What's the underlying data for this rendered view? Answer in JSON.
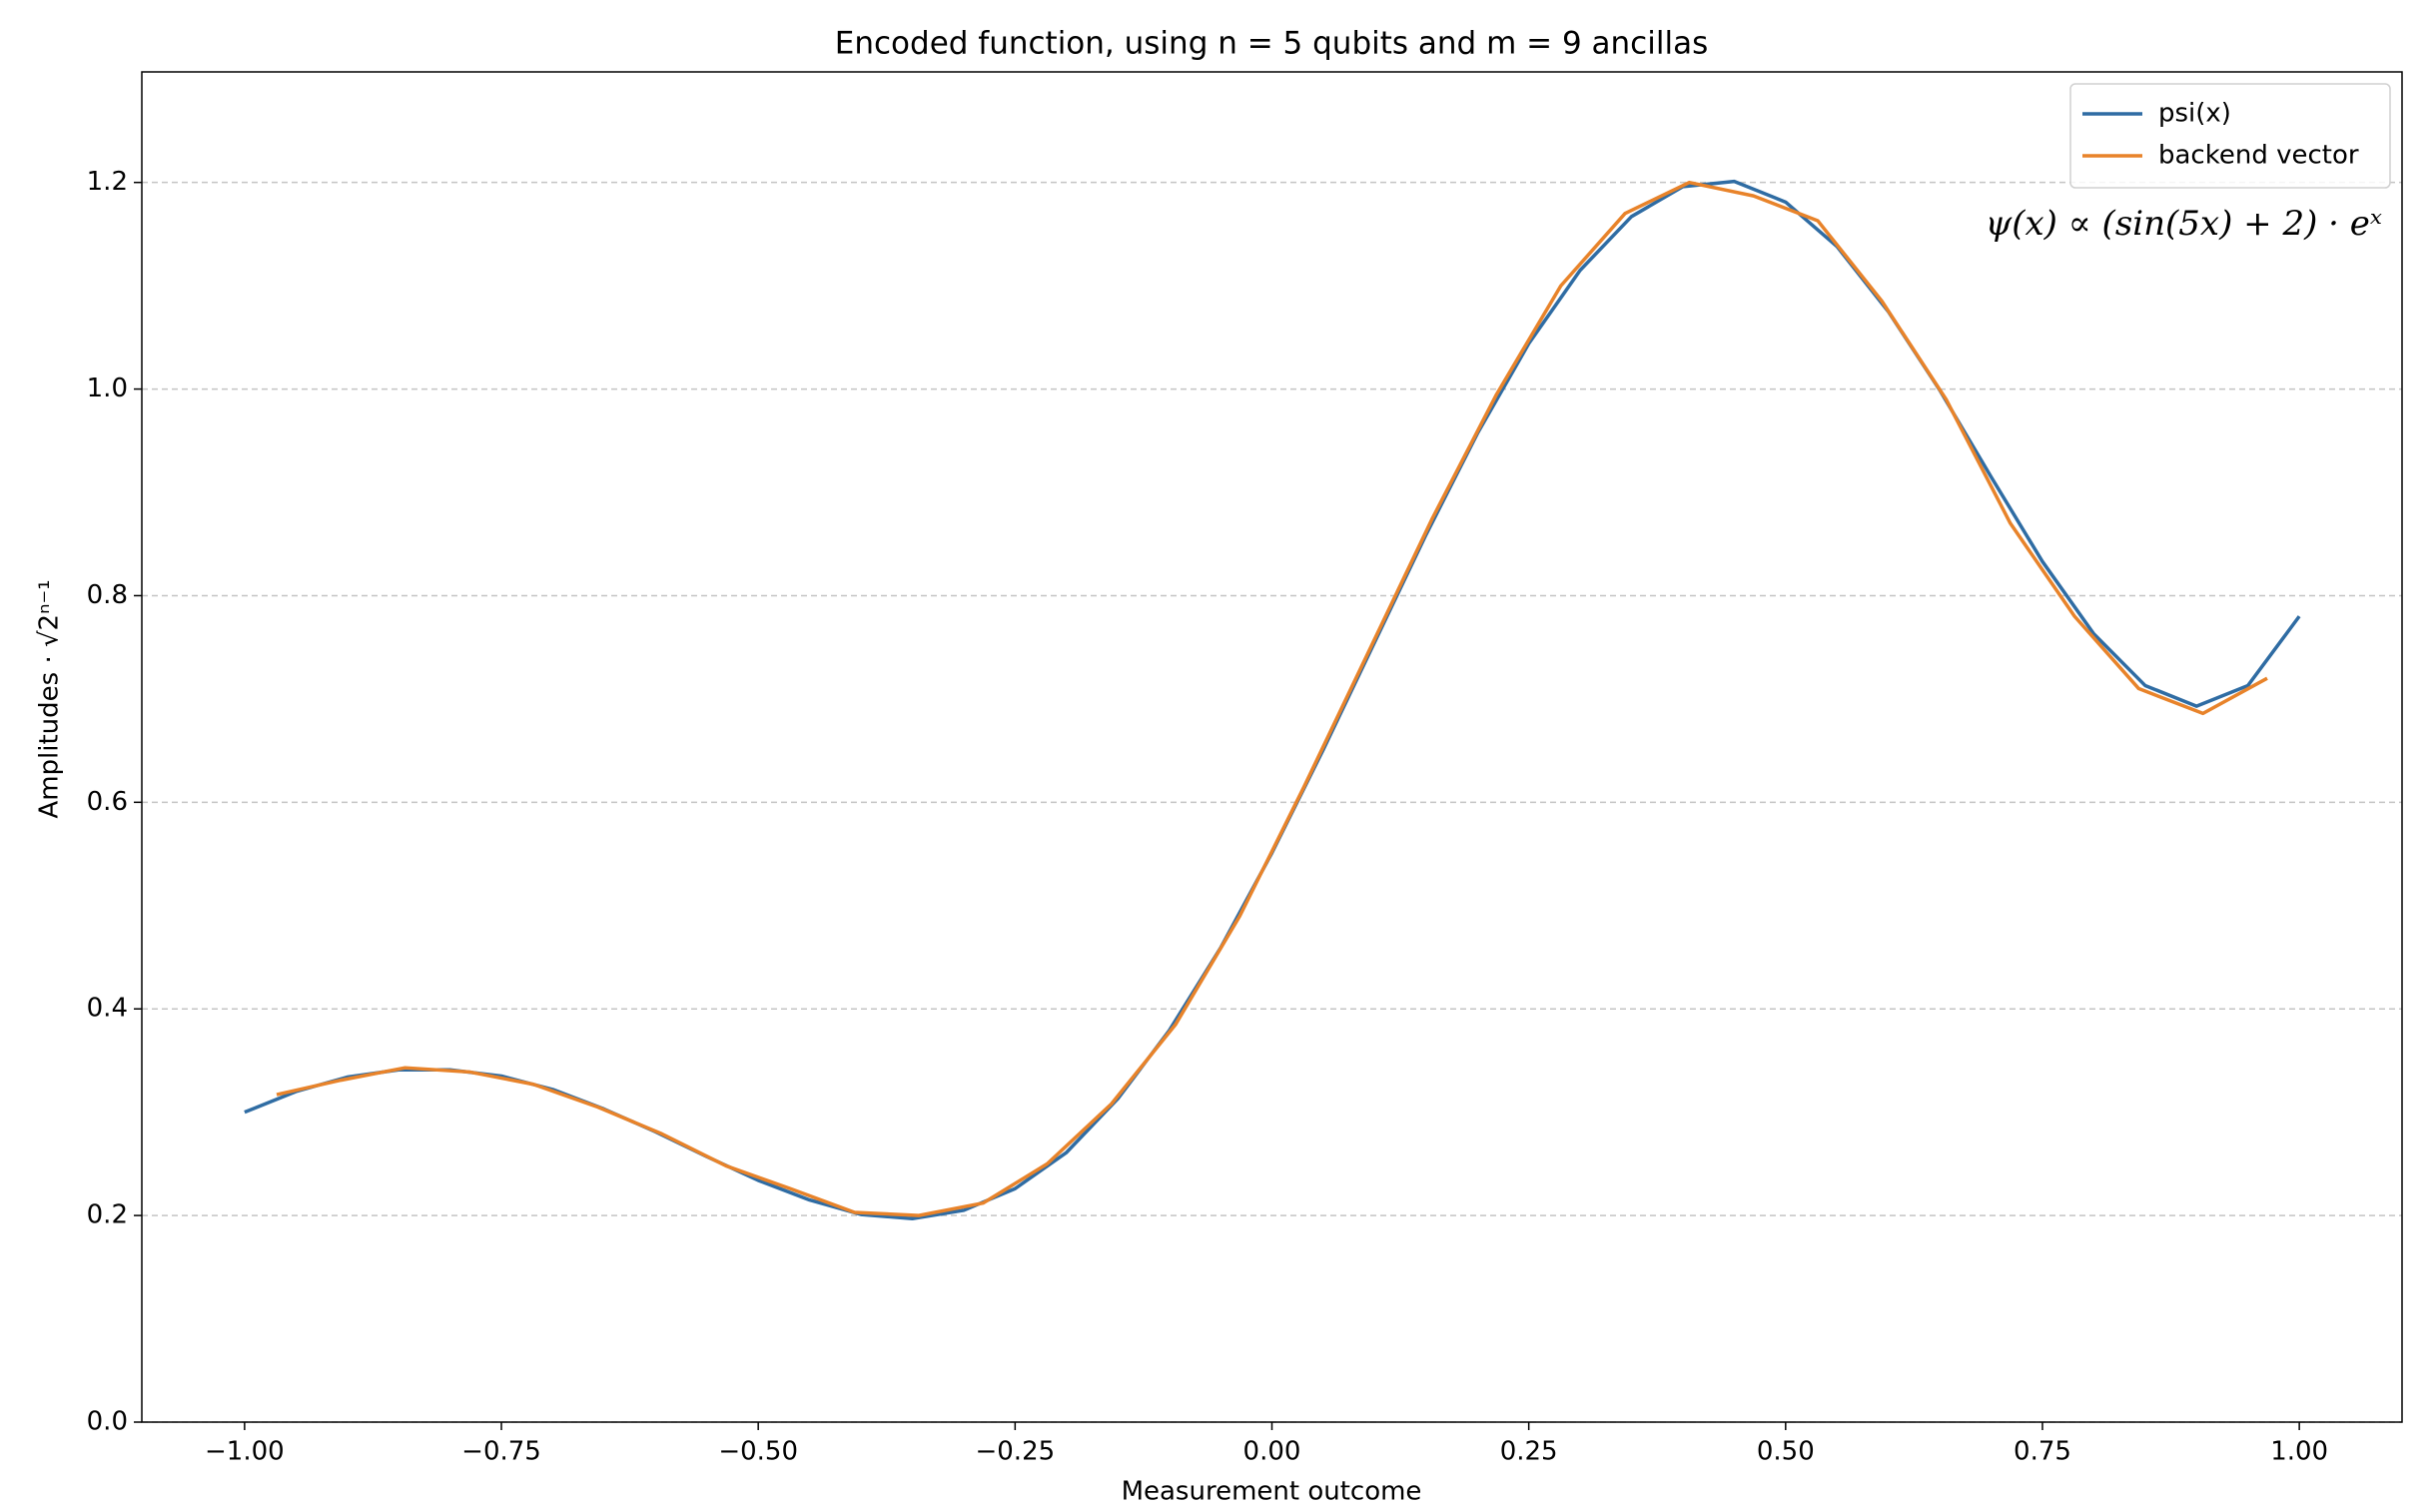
{
  "chart_data": {
    "type": "line",
    "title": "Encoded function, using n = 5 qubits and m = 9 ancillas",
    "xlabel": "Measurement outcome",
    "ylabel": "Amplitudes · √2ⁿ⁻¹",
    "annotation": "ψ(x) ∝ (sin(5x) + 2) · eˣ",
    "xlim": [
      -1.1,
      1.1
    ],
    "ylim": [
      0,
      1.307
    ],
    "xticks": [
      {
        "value": -1,
        "label": "−1.00"
      },
      {
        "value": -0.75,
        "label": "−0.75"
      },
      {
        "value": -0.5,
        "label": "−0.50"
      },
      {
        "value": -0.25,
        "label": "−0.25"
      },
      {
        "value": 0,
        "label": "0.00"
      },
      {
        "value": 0.25,
        "label": "0.25"
      },
      {
        "value": 0.5,
        "label": "0.50"
      },
      {
        "value": 0.75,
        "label": "0.75"
      },
      {
        "value": 1,
        "label": "1.00"
      }
    ],
    "yticks": [
      {
        "value": 0,
        "label": "0.0"
      },
      {
        "value": 0.2,
        "label": "0.2"
      },
      {
        "value": 0.4,
        "label": "0.4"
      },
      {
        "value": 0.6,
        "label": "0.6"
      },
      {
        "value": 0.8,
        "label": "0.8"
      },
      {
        "value": 1,
        "label": "1.0"
      },
      {
        "value": 1.2,
        "label": "1.2"
      }
    ],
    "grid": true,
    "legend": "upper right",
    "series": [
      {
        "name": "psi(x)",
        "color": "#2f6ca3",
        "x": [
          -1,
          -0.95,
          -0.9,
          -0.85,
          -0.8,
          -0.75,
          -0.7,
          -0.65,
          -0.6,
          -0.55,
          -0.5,
          -0.45,
          -0.4,
          -0.35,
          -0.3,
          -0.25,
          -0.2,
          -0.15,
          -0.1,
          -0.05,
          0,
          0.05,
          0.1,
          0.15,
          0.2,
          0.25,
          0.3,
          0.35,
          0.4,
          0.45,
          0.5,
          0.55,
          0.6,
          0.65,
          0.7,
          0.75,
          0.8,
          0.85,
          0.9,
          0.95,
          1
        ],
        "values": [
          0.3,
          0.32,
          0.334,
          0.341,
          0.341,
          0.335,
          0.322,
          0.303,
          0.281,
          0.257,
          0.234,
          0.215,
          0.201,
          0.197,
          0.205,
          0.226,
          0.261,
          0.313,
          0.379,
          0.459,
          0.551,
          0.651,
          0.755,
          0.859,
          0.957,
          1.044,
          1.115,
          1.167,
          1.196,
          1.201,
          1.181,
          1.138,
          1.075,
          0.999,
          0.915,
          0.833,
          0.763,
          0.713,
          0.693,
          0.713,
          0.78
        ]
      },
      {
        "name": "backend vector",
        "color": "#e8832a",
        "x": [
          -0.96875,
          -0.90625,
          -0.84375,
          -0.78125,
          -0.71875,
          -0.65625,
          -0.59375,
          -0.53125,
          -0.46875,
          -0.40625,
          -0.34375,
          -0.28125,
          -0.21875,
          -0.15625,
          -0.09375,
          -0.03125,
          0.03125,
          0.09375,
          0.15625,
          0.21875,
          0.28125,
          0.34375,
          0.40625,
          0.46875,
          0.53125,
          0.59375,
          0.65625,
          0.71875,
          0.78125,
          0.84375,
          0.90625,
          0.96875
        ],
        "values": [
          0.317,
          0.331,
          0.343,
          0.339,
          0.327,
          0.305,
          0.279,
          0.248,
          0.226,
          0.203,
          0.2,
          0.212,
          0.25,
          0.308,
          0.385,
          0.49,
          0.615,
          0.745,
          0.875,
          0.995,
          1.1,
          1.17,
          1.2,
          1.187,
          1.163,
          1.085,
          0.99,
          0.87,
          0.78,
          0.71,
          0.686,
          0.72
        ]
      }
    ]
  }
}
